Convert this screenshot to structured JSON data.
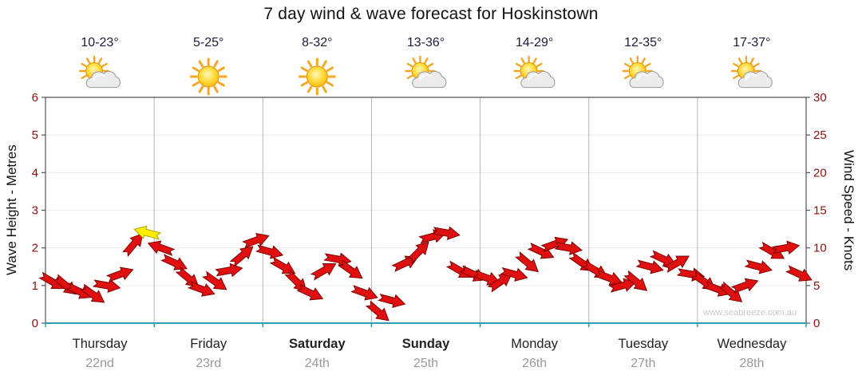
{
  "title": "7 day wind & wave forecast for Hoskinstown",
  "watermark": "www.seabreeze.com.au",
  "days": [
    {
      "name": "Thursday",
      "date": "22nd",
      "temp": "10-23°",
      "icon": "sun-cloud",
      "bold": false
    },
    {
      "name": "Friday",
      "date": "23rd",
      "temp": "5-25°",
      "icon": "sun",
      "bold": false
    },
    {
      "name": "Saturday",
      "date": "24th",
      "temp": "8-32°",
      "icon": "sun",
      "bold": true
    },
    {
      "name": "Sunday",
      "date": "25th",
      "temp": "13-36°",
      "icon": "sun-cloud",
      "bold": true
    },
    {
      "name": "Monday",
      "date": "26th",
      "temp": "14-29°",
      "icon": "sun-cloud",
      "bold": false
    },
    {
      "name": "Tuesday",
      "date": "27th",
      "temp": "12-35°",
      "icon": "sun-cloud",
      "bold": false
    },
    {
      "name": "Wednesday",
      "date": "28th",
      "temp": "17-37°",
      "icon": "sun-cloud",
      "bold": false
    }
  ],
  "chart_data": {
    "type": "line",
    "title": "7 day wind & wave forecast for Hoskinstown",
    "x_categories": [
      "Thursday 22nd",
      "Friday 23rd",
      "Saturday 24th",
      "Sunday 25th",
      "Monday 26th",
      "Tuesday 27th",
      "Wednesday 28th"
    ],
    "points_per_day": 8,
    "temperatures": [
      "10-23°",
      "5-25°",
      "8-32°",
      "13-36°",
      "14-29°",
      "12-35°",
      "17-37°"
    ],
    "weather_icons": [
      "sun-cloud",
      "sun",
      "sun",
      "sun-cloud",
      "sun-cloud",
      "sun-cloud",
      "sun-cloud"
    ],
    "left_axis": {
      "label": "Wave Height - Metres",
      "min": 0,
      "max": 6,
      "ticks": [
        0,
        1,
        2,
        3,
        4,
        5,
        6
      ]
    },
    "right_axis": {
      "label": "Wind Speed - Knots",
      "min": 0,
      "max": 30,
      "ticks": [
        0,
        5,
        10,
        15,
        20,
        25,
        30
      ]
    },
    "unit_relation": "axes aligned so 1 metre (left) = 5 knots (right)",
    "grid": true,
    "legend": "none",
    "series": [
      {
        "name": "Wind speed (knots), 3-hourly wind arrows",
        "type": "wind-arrows",
        "color": "#e01010",
        "values": [
          5.5,
          5,
          4.2,
          3.8,
          5,
          6.5,
          10.5,
          12,
          10,
          8,
          6,
          4.5,
          5.5,
          7,
          9,
          11,
          9.5,
          7.5,
          5.5,
          4,
          7,
          8.5,
          7,
          4,
          1.5,
          3,
          8,
          9.5,
          11.5,
          12,
          7,
          6.5,
          6,
          5.5,
          6.5,
          8,
          9.5,
          10.5,
          10,
          8,
          7,
          6,
          5,
          5.5,
          7.5,
          8.5,
          8,
          6.5,
          5.5,
          4.5,
          4,
          5,
          7.5,
          9.5,
          10,
          6.5
        ],
        "directions_deg": [
          30,
          40,
          25,
          35,
          10,
          -20,
          -50,
          195,
          -160,
          25,
          40,
          20,
          35,
          -10,
          -40,
          -20,
          15,
          30,
          45,
          25,
          -30,
          10,
          35,
          20,
          40,
          15,
          -25,
          -45,
          -15,
          10,
          30,
          25,
          20,
          -35,
          15,
          40,
          25,
          -20,
          10,
          35,
          30,
          20,
          -15,
          40,
          15,
          25,
          -30,
          10,
          35,
          20,
          40,
          -20,
          15,
          30,
          -10,
          25
        ]
      }
    ],
    "highlight_arrow": {
      "index": 7,
      "color": "#ffee00",
      "note": "yellow arrow at Thursday evening peak ~12 knots (~2.4 m)"
    }
  },
  "colors": {
    "arrow": "#e01010",
    "arrow_outline": "#7d0000",
    "highlight_arrow": "#ffee00",
    "highlight_outline": "#a8a800",
    "tick_text": "#8b1010",
    "axis_frame": "#555555",
    "bottom_axis": "#2f9db0",
    "day_text": "#222222",
    "date_text": "#999999",
    "temp_text": "#1b1b3a",
    "grid_vertical": "#b5b5b5",
    "grid_horizontal": "#ececec",
    "watermark": "#c8c8c8"
  }
}
